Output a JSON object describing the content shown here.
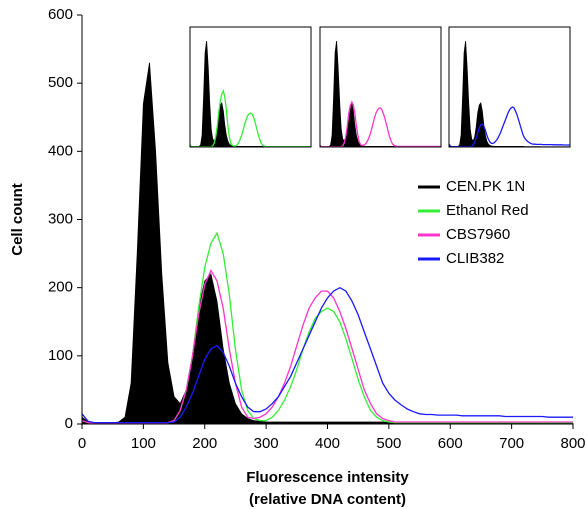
{
  "chart_data": {
    "type": "histogram",
    "xlabel": [
      "Fluorescence intensity",
      "(relative DNA content)"
    ],
    "ylabel": "Cell count",
    "xlim": [
      0,
      800
    ],
    "ylim": [
      0,
      600
    ],
    "xticks": [
      0,
      100,
      200,
      300,
      400,
      500,
      600,
      700,
      800
    ],
    "yticks": [
      0,
      100,
      200,
      300,
      400,
      500,
      600
    ],
    "legend": "right",
    "x": [
      0,
      10,
      20,
      30,
      40,
      50,
      60,
      70,
      80,
      90,
      100,
      110,
      120,
      130,
      140,
      150,
      160,
      170,
      180,
      190,
      200,
      210,
      220,
      230,
      240,
      250,
      260,
      270,
      280,
      290,
      300,
      310,
      320,
      330,
      340,
      350,
      360,
      370,
      380,
      390,
      400,
      410,
      420,
      430,
      440,
      450,
      460,
      470,
      480,
      490,
      500,
      510,
      520,
      530,
      540,
      550,
      560,
      570,
      580,
      590,
      600,
      610,
      620,
      630,
      640,
      650,
      660,
      670,
      680,
      690,
      700,
      710,
      720,
      730,
      740,
      750,
      760,
      770,
      780,
      790,
      800
    ],
    "series": [
      {
        "name": "CEN.PK 1N",
        "color": "#000000",
        "filled": true,
        "values": [
          10,
          3,
          2,
          2,
          2,
          2,
          3,
          10,
          60,
          250,
          470,
          530,
          400,
          220,
          90,
          40,
          30,
          50,
          100,
          170,
          210,
          220,
          180,
          110,
          60,
          30,
          15,
          8,
          5,
          4,
          3,
          3,
          3,
          3,
          3,
          3,
          3,
          3,
          3,
          3,
          3,
          3,
          3,
          3,
          3,
          3,
          3,
          3,
          3,
          3,
          2,
          2,
          2,
          2,
          2,
          2,
          2,
          2,
          2,
          2,
          2,
          1,
          1,
          1,
          1,
          1,
          1,
          1,
          1,
          1,
          1,
          1,
          1,
          1,
          1,
          1,
          1,
          1,
          1,
          1,
          1
        ]
      },
      {
        "name": "Ethanol Red",
        "color": "#33ee33",
        "filled": false,
        "values": [
          5,
          2,
          1,
          1,
          1,
          1,
          1,
          1,
          1,
          1,
          1,
          1,
          1,
          1,
          2,
          5,
          20,
          50,
          100,
          170,
          230,
          265,
          280,
          250,
          190,
          110,
          50,
          20,
          8,
          5,
          5,
          10,
          20,
          35,
          55,
          80,
          110,
          135,
          155,
          165,
          170,
          165,
          150,
          125,
          95,
          65,
          40,
          20,
          10,
          5,
          3,
          2,
          2,
          2,
          2,
          2,
          2,
          2,
          2,
          2,
          2,
          2,
          2,
          2,
          2,
          2,
          2,
          2,
          2,
          2,
          2,
          2,
          2,
          2,
          2,
          2,
          2,
          2,
          2,
          2,
          2
        ]
      },
      {
        "name": "CBS7960",
        "color": "#ff33cc",
        "filled": false,
        "values": [
          5,
          2,
          1,
          1,
          1,
          1,
          1,
          1,
          1,
          1,
          1,
          1,
          1,
          1,
          2,
          5,
          20,
          50,
          100,
          160,
          205,
          225,
          210,
          170,
          110,
          60,
          25,
          10,
          8,
          10,
          15,
          25,
          40,
          60,
          85,
          115,
          145,
          170,
          185,
          195,
          195,
          185,
          165,
          140,
          110,
          80,
          50,
          30,
          15,
          8,
          5,
          3,
          3,
          3,
          3,
          3,
          3,
          3,
          3,
          3,
          3,
          3,
          3,
          3,
          3,
          3,
          3,
          3,
          3,
          3,
          3,
          3,
          3,
          3,
          3,
          3,
          3,
          3,
          3,
          3,
          3
        ]
      },
      {
        "name": "CLIB382",
        "color": "#1a1aff",
        "filled": false,
        "values": [
          15,
          4,
          2,
          2,
          2,
          2,
          2,
          2,
          2,
          2,
          2,
          2,
          2,
          2,
          2,
          3,
          10,
          25,
          45,
          70,
          95,
          110,
          115,
          105,
          85,
          60,
          40,
          25,
          18,
          18,
          22,
          30,
          40,
          55,
          70,
          90,
          110,
          130,
          150,
          170,
          185,
          195,
          200,
          195,
          180,
          160,
          135,
          110,
          85,
          60,
          45,
          35,
          28,
          22,
          18,
          15,
          14,
          14,
          13,
          13,
          13,
          13,
          12,
          12,
          12,
          12,
          12,
          12,
          12,
          11,
          11,
          11,
          11,
          11,
          11,
          11,
          10,
          10,
          10,
          10,
          10
        ]
      }
    ]
  }
}
